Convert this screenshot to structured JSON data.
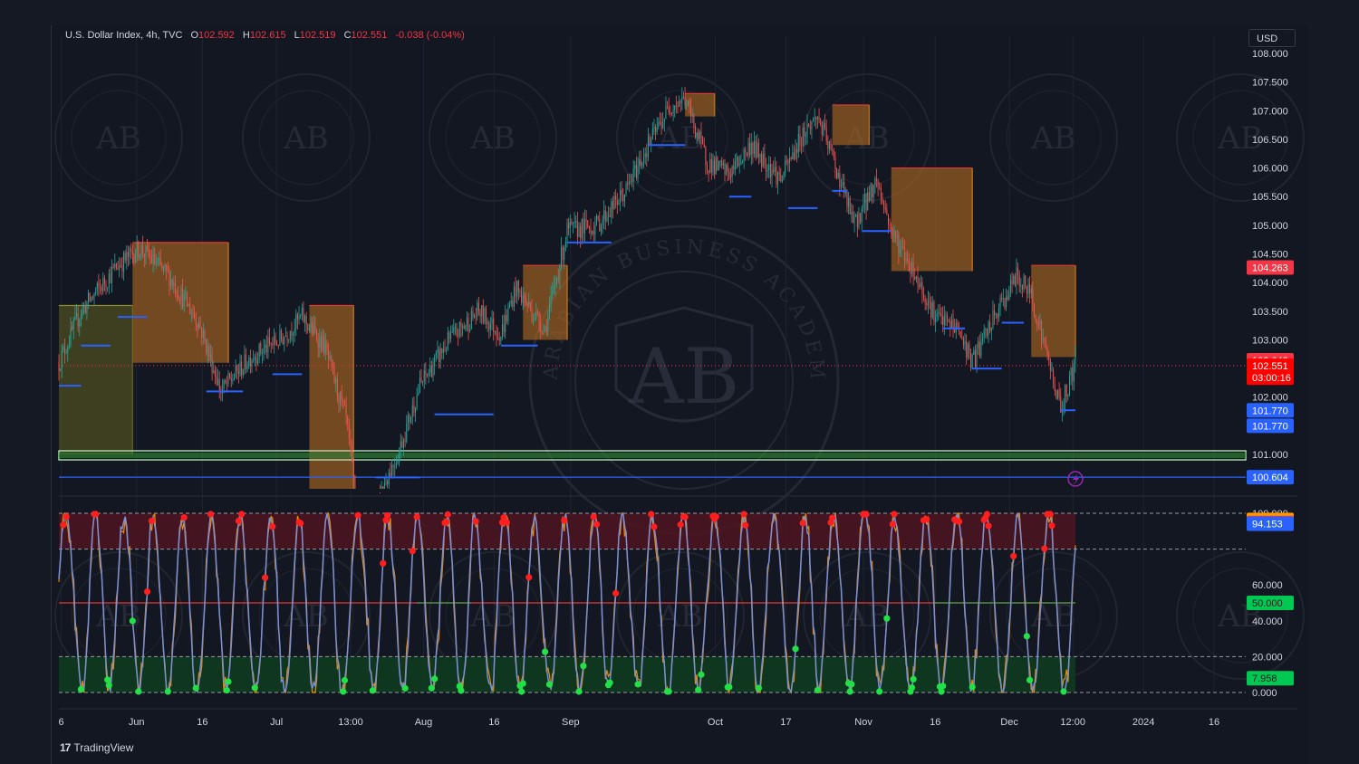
{
  "header": {
    "symbol": "U.S. Dollar Index, 4h, TVC",
    "open_label": "O",
    "open": "102.592",
    "high_label": "H",
    "high": "102.615",
    "low_label": "L",
    "low": "102.519",
    "close_label": "C",
    "close": "102.551",
    "change": "-0.038 (-0.04%)"
  },
  "currency_button": "USD",
  "branding": {
    "logo_mark": "17",
    "name": "TradingView"
  },
  "watermark": {
    "text": "AB",
    "ring_text": "ARABIAN BUSINESS ACADEMY"
  },
  "colors": {
    "up": "#26a69a",
    "down": "#ef5350",
    "supply_zone": "#b36b1f",
    "demand_zone": "#5a5a20",
    "support_line": "#2962ff",
    "k_line": "#7b8fd6",
    "d_line": "#ff9800",
    "overbought_marker": "#ff1f1f",
    "oversold_marker": "#21e048"
  },
  "chart_data": [
    {
      "type": "candlestick",
      "name": "U.S. Dollar Index, 4h, TVC",
      "ylim": [
        100.4,
        108.3
      ],
      "yticks": [
        "108.000",
        "107.500",
        "107.000",
        "106.500",
        "106.000",
        "105.500",
        "105.000",
        "104.500",
        "104.000",
        "103.500",
        "103.000",
        "102.000",
        "101.000"
      ],
      "x_ticks": [
        "6",
        "Jun",
        "16",
        "Jul",
        "13:00",
        "Aug",
        "16",
        "Sep",
        "Oct",
        "17",
        "Nov",
        "16",
        "Dec",
        "12:00",
        "2024",
        "16"
      ],
      "price_path_keypoints": [
        {
          "t": 0,
          "v": 102.6
        },
        {
          "t": 15,
          "v": 103.5
        },
        {
          "t": 40,
          "v": 104.3
        },
        {
          "t": 55,
          "v": 104.6
        },
        {
          "t": 75,
          "v": 104.1
        },
        {
          "t": 95,
          "v": 103.3
        },
        {
          "t": 110,
          "v": 102.1
        },
        {
          "t": 130,
          "v": 102.7
        },
        {
          "t": 150,
          "v": 103.0
        },
        {
          "t": 165,
          "v": 103.4
        },
        {
          "t": 180,
          "v": 102.9
        },
        {
          "t": 195,
          "v": 101.6
        },
        {
          "t": 205,
          "v": 99.5
        },
        {
          "t": 215,
          "v": 100.2
        },
        {
          "t": 230,
          "v": 101.0
        },
        {
          "t": 245,
          "v": 102.2
        },
        {
          "t": 265,
          "v": 103.0
        },
        {
          "t": 285,
          "v": 103.5
        },
        {
          "t": 300,
          "v": 103.1
        },
        {
          "t": 310,
          "v": 103.9
        },
        {
          "t": 330,
          "v": 103.2
        },
        {
          "t": 345,
          "v": 104.9
        },
        {
          "t": 365,
          "v": 105.0
        },
        {
          "t": 385,
          "v": 105.6
        },
        {
          "t": 400,
          "v": 106.4
        },
        {
          "t": 415,
          "v": 107.1
        },
        {
          "t": 425,
          "v": 107.2
        },
        {
          "t": 440,
          "v": 106.1
        },
        {
          "t": 455,
          "v": 105.9
        },
        {
          "t": 470,
          "v": 106.4
        },
        {
          "t": 490,
          "v": 105.8
        },
        {
          "t": 505,
          "v": 106.6
        },
        {
          "t": 515,
          "v": 106.9
        },
        {
          "t": 525,
          "v": 106.2
        },
        {
          "t": 540,
          "v": 105.0
        },
        {
          "t": 555,
          "v": 105.8
        },
        {
          "t": 565,
          "v": 104.9
        },
        {
          "t": 580,
          "v": 104.2
        },
        {
          "t": 595,
          "v": 103.4
        },
        {
          "t": 610,
          "v": 103.2
        },
        {
          "t": 620,
          "v": 102.6
        },
        {
          "t": 635,
          "v": 103.4
        },
        {
          "t": 650,
          "v": 104.1
        },
        {
          "t": 660,
          "v": 103.8
        },
        {
          "t": 675,
          "v": 102.3
        },
        {
          "t": 680,
          "v": 101.8
        },
        {
          "t": 690,
          "v": 102.6
        }
      ],
      "zones": [
        {
          "kind": "demand",
          "top": 103.6,
          "bottom": 101.0,
          "from": 0,
          "to": 50
        },
        {
          "kind": "supply",
          "top": 104.7,
          "bottom": 102.6,
          "from": 50,
          "to": 115
        },
        {
          "kind": "supply",
          "top": 103.6,
          "bottom": 99.9,
          "from": 170,
          "to": 200
        },
        {
          "kind": "supply",
          "top": 104.3,
          "bottom": 103.0,
          "from": 315,
          "to": 345
        },
        {
          "kind": "supply",
          "top": 107.3,
          "bottom": 106.9,
          "from": 425,
          "to": 445
        },
        {
          "kind": "supply",
          "top": 107.1,
          "bottom": 106.4,
          "from": 525,
          "to": 550
        },
        {
          "kind": "supply",
          "top": 106.0,
          "bottom": 104.2,
          "from": 565,
          "to": 620
        },
        {
          "kind": "supply",
          "top": 104.3,
          "bottom": 102.7,
          "from": 660,
          "to": 690
        }
      ],
      "support_steps": [
        {
          "v": 102.2,
          "from": 0,
          "to": 15
        },
        {
          "v": 102.9,
          "from": 15,
          "to": 35
        },
        {
          "v": 103.4,
          "from": 40,
          "to": 60
        },
        {
          "v": 102.1,
          "from": 100,
          "to": 125
        },
        {
          "v": 102.4,
          "from": 145,
          "to": 165
        },
        {
          "v": 100.6,
          "from": 215,
          "to": 245
        },
        {
          "v": 101.7,
          "from": 255,
          "to": 295
        },
        {
          "v": 102.9,
          "from": 300,
          "to": 325
        },
        {
          "v": 104.7,
          "from": 345,
          "to": 375
        },
        {
          "v": 106.4,
          "from": 400,
          "to": 425
        },
        {
          "v": 105.5,
          "from": 455,
          "to": 470
        },
        {
          "v": 105.3,
          "from": 495,
          "to": 515
        },
        {
          "v": 105.6,
          "from": 525,
          "to": 535
        },
        {
          "v": 104.9,
          "from": 545,
          "to": 565
        },
        {
          "v": 103.2,
          "from": 600,
          "to": 615
        },
        {
          "v": 102.5,
          "from": 620,
          "to": 640
        },
        {
          "v": 103.3,
          "from": 640,
          "to": 655
        },
        {
          "v": 101.77,
          "from": 680,
          "to": 690
        }
      ],
      "horizontal_levels": [
        {
          "v": 101.0,
          "style": "green-band"
        },
        {
          "v": 100.604,
          "style": "blue-line"
        },
        {
          "v": 102.551,
          "style": "red-dotted"
        }
      ],
      "price_tags": [
        {
          "label": "104.263",
          "v": 104.263,
          "color": "#f23645"
        },
        {
          "label": "102.643",
          "v": 102.643,
          "color": "#f23645"
        },
        {
          "label": "102.551",
          "v": 102.551,
          "color": "#ff0000"
        },
        {
          "label": "03:00:16",
          "v": 102.34,
          "color": "#ff0000"
        },
        {
          "label": "101.770",
          "v": 101.77,
          "color": "#2962ff"
        },
        {
          "label": "101.770",
          "v": 101.5,
          "color": "#2962ff"
        },
        {
          "label": "100.604",
          "v": 100.604,
          "color": "#2962ff"
        }
      ]
    },
    {
      "type": "line",
      "name": "oscillator",
      "ylim": [
        0,
        100
      ],
      "yticks": [
        "100.000",
        "60.000",
        "40.000",
        "20.000",
        "0.000"
      ],
      "bands": {
        "overbought": [
          80,
          100
        ],
        "oversold": [
          0,
          20
        ],
        "midline": 50
      },
      "tags": [
        {
          "label": "96.266",
          "v": 96.266,
          "color": "#ff9800"
        },
        {
          "label": "94.553",
          "v": 94.553,
          "color": "#f23645"
        },
        {
          "label": "94.153",
          "v": 94.153,
          "color": "#2962ff"
        },
        {
          "label": "50.000",
          "v": 50,
          "color": "#00c853"
        },
        {
          "label": "7.958",
          "v": 7.958,
          "color": "#00c853"
        }
      ]
    }
  ]
}
